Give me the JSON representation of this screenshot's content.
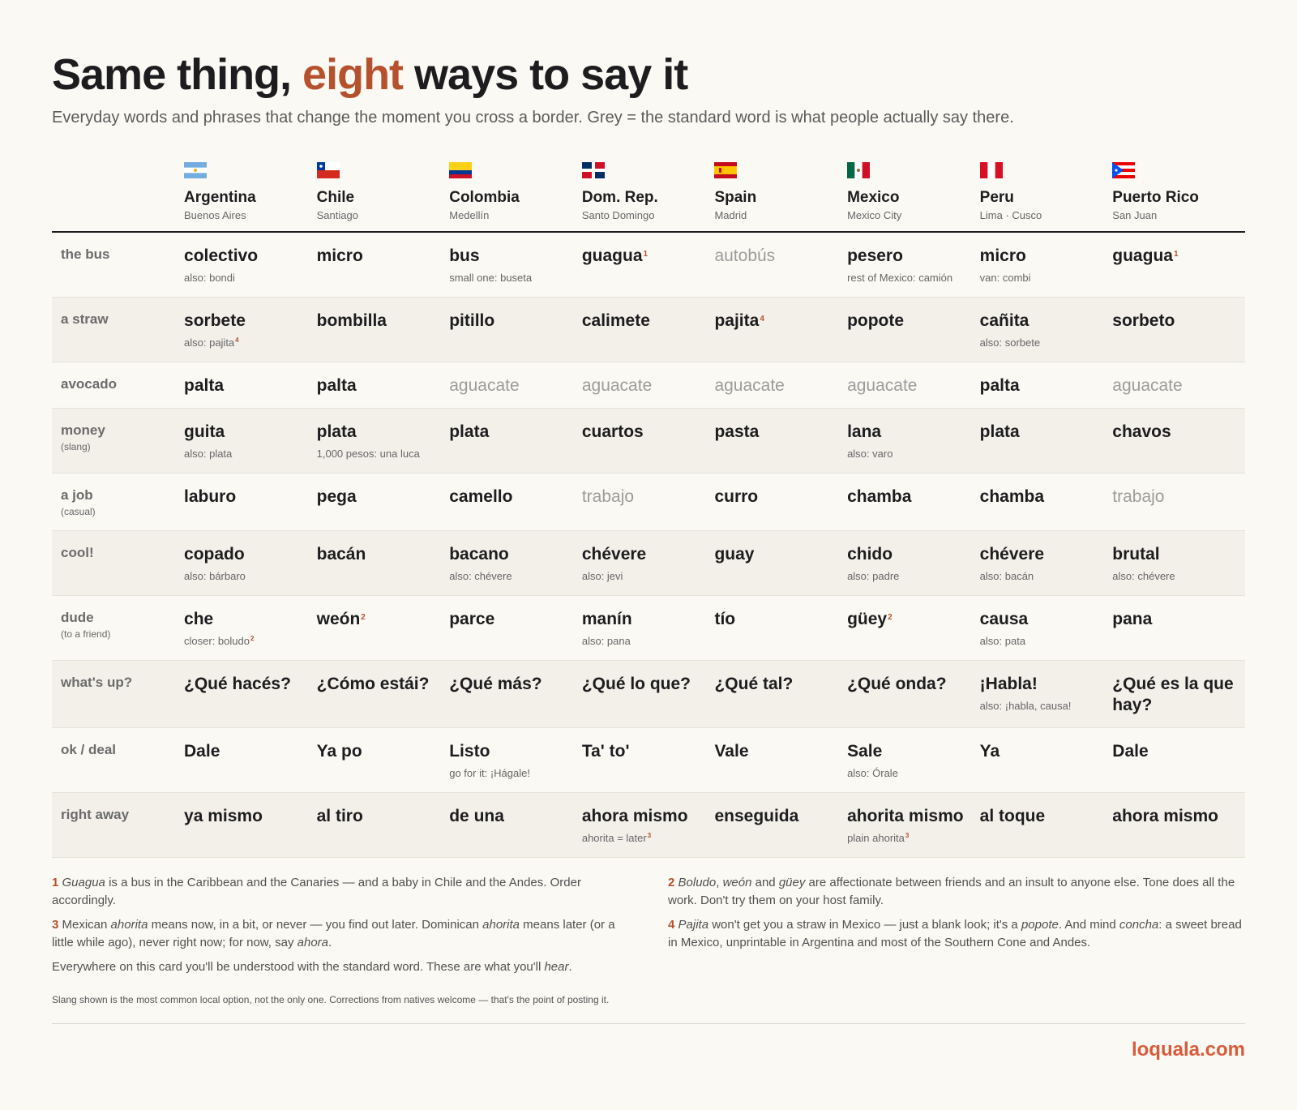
{
  "title": {
    "pre": "Same thing, ",
    "accent": "eight",
    "post": " ways to say it"
  },
  "subtitle": "Everyday words and phrases that change the moment you cross a border. Grey = the standard word is what people actually say there.",
  "countries": [
    {
      "name": "Argentina",
      "city": "Buenos Aires",
      "flag": "argentina-flag"
    },
    {
      "name": "Chile",
      "city": "Santiago",
      "flag": "chile-flag"
    },
    {
      "name": "Colombia",
      "city": "Medellín",
      "flag": "colombia-flag"
    },
    {
      "name": "Dom. Rep.",
      "city": "Santo Domingo",
      "flag": "dominican-republic-flag"
    },
    {
      "name": "Spain",
      "city": "Madrid",
      "flag": "spain-flag"
    },
    {
      "name": "Mexico",
      "city": "Mexico City",
      "flag": "mexico-flag"
    },
    {
      "name": "Peru",
      "city": "Lima · Cusco",
      "flag": "peru-flag"
    },
    {
      "name": "Puerto Rico",
      "city": "San Juan",
      "flag": "puerto-rico-flag"
    }
  ],
  "rows": [
    {
      "label": "the bus",
      "note": "",
      "cells": [
        {
          "word": "colectivo",
          "note": "also: bondi"
        },
        {
          "word": "micro"
        },
        {
          "word": "bus",
          "note": "small one: buseta"
        },
        {
          "word": "guagua",
          "fn": "1"
        },
        {
          "word": "autobús",
          "std": true
        },
        {
          "word": "pesero",
          "note": "rest of Mexico: camión"
        },
        {
          "word": "micro",
          "note": "van: combi"
        },
        {
          "word": "guagua",
          "fn": "1"
        }
      ]
    },
    {
      "label": "a straw",
      "note": "",
      "cells": [
        {
          "word": "sorbete",
          "note": "also: pajita",
          "note_fn": "4"
        },
        {
          "word": "bombilla"
        },
        {
          "word": "pitillo"
        },
        {
          "word": "calimete"
        },
        {
          "word": "pajita",
          "fn": "4"
        },
        {
          "word": "popote"
        },
        {
          "word": "cañita",
          "note": "also: sorbete"
        },
        {
          "word": "sorbeto"
        }
      ]
    },
    {
      "label": "avocado",
      "note": "",
      "cells": [
        {
          "word": "palta"
        },
        {
          "word": "palta"
        },
        {
          "word": "aguacate",
          "std": true
        },
        {
          "word": "aguacate",
          "std": true
        },
        {
          "word": "aguacate",
          "std": true
        },
        {
          "word": "aguacate",
          "std": true
        },
        {
          "word": "palta"
        },
        {
          "word": "aguacate",
          "std": true
        }
      ]
    },
    {
      "label": "money",
      "note": "(slang)",
      "cells": [
        {
          "word": "guita",
          "note": "also: plata"
        },
        {
          "word": "plata",
          "note": "1,000 pesos: una luca"
        },
        {
          "word": "plata"
        },
        {
          "word": "cuartos"
        },
        {
          "word": "pasta"
        },
        {
          "word": "lana",
          "note": "also: varo"
        },
        {
          "word": "plata"
        },
        {
          "word": "chavos"
        }
      ]
    },
    {
      "label": "a job",
      "note": "(casual)",
      "cells": [
        {
          "word": "laburo"
        },
        {
          "word": "pega"
        },
        {
          "word": "camello"
        },
        {
          "word": "trabajo",
          "std": true
        },
        {
          "word": "curro"
        },
        {
          "word": "chamba"
        },
        {
          "word": "chamba"
        },
        {
          "word": "trabajo",
          "std": true
        }
      ]
    },
    {
      "label": "cool!",
      "note": "",
      "cells": [
        {
          "word": "copado",
          "note": "also: bárbaro"
        },
        {
          "word": "bacán"
        },
        {
          "word": "bacano",
          "note": "also: chévere"
        },
        {
          "word": "chévere",
          "note": "also: jevi"
        },
        {
          "word": "guay"
        },
        {
          "word": "chido",
          "note": "also: padre"
        },
        {
          "word": "chévere",
          "note": "also: bacán"
        },
        {
          "word": "brutal",
          "note": "also: chévere"
        }
      ]
    },
    {
      "label": "dude",
      "note": "(to a friend)",
      "cells": [
        {
          "word": "che",
          "note": "closer: boludo",
          "note_fn": "2"
        },
        {
          "word": "weón",
          "fn": "2"
        },
        {
          "word": "parce"
        },
        {
          "word": "manín",
          "note": "also: pana"
        },
        {
          "word": "tío"
        },
        {
          "word": "güey",
          "fn": "2"
        },
        {
          "word": "causa",
          "note": "also: pata"
        },
        {
          "word": "pana"
        }
      ]
    },
    {
      "label": "what's up?",
      "note": "",
      "cells": [
        {
          "word": "¿Qué hacés?"
        },
        {
          "word": "¿Cómo estái?"
        },
        {
          "word": "¿Qué más?"
        },
        {
          "word": "¿Qué lo que?"
        },
        {
          "word": "¿Qué tal?"
        },
        {
          "word": "¿Qué onda?"
        },
        {
          "word": "¡Habla!",
          "note": "also: ¡habla, causa!"
        },
        {
          "word": "¿Qué es la que hay?"
        }
      ]
    },
    {
      "label": "ok / deal",
      "note": "",
      "cells": [
        {
          "word": "Dale"
        },
        {
          "word": "Ya po"
        },
        {
          "word": "Listo",
          "note": "go for it: ¡Hágale!"
        },
        {
          "word": "Ta' to'"
        },
        {
          "word": "Vale"
        },
        {
          "word": "Sale",
          "note": "also: Órale"
        },
        {
          "word": "Ya"
        },
        {
          "word": "Dale"
        }
      ]
    },
    {
      "label": "right away",
      "note": "",
      "cells": [
        {
          "word": "ya mismo"
        },
        {
          "word": "al tiro"
        },
        {
          "word": "de una"
        },
        {
          "word": "ahora mismo",
          "note": "ahorita = later",
          "note_fn": "3"
        },
        {
          "word": "enseguida"
        },
        {
          "word": "ahorita mismo",
          "note": "plain ahorita",
          "note_fn": "3"
        },
        {
          "word": "al toque"
        },
        {
          "word": "ahora mismo"
        }
      ]
    }
  ],
  "footnotes": {
    "f1": {
      "num": "1",
      "em1": "Guagua",
      "text": " is a bus in the Caribbean and the Canaries — and a baby in Chile and the Andes. Order accordingly."
    },
    "f2": {
      "num": "2",
      "em1": "Boludo",
      "sep1": ", ",
      "em2": "weón",
      "sep2": " and ",
      "em3": "güey",
      "text": " are affectionate between friends and an insult to anyone else. Tone does all the work. Don't try them on your host family."
    },
    "f3": {
      "num": "3",
      "pre": " Mexican ",
      "em1": "ahorita",
      "mid1": " means now, in a bit, or never — you find out later. Dominican ",
      "em2": "ahorita",
      "mid2": " means later (or a little while ago), never right now; for now, say ",
      "em3": "ahora",
      "post": "."
    },
    "f4": {
      "num": "4",
      "em1": "Pajita",
      "mid1": " won't get you a straw in Mexico — just a blank look; it's a ",
      "em2": "popote",
      "mid2": ". And mind ",
      "em3": "concha",
      "post": ": a sweet bread in Mexico, unprintable in Argentina and most of the Southern Cone and Andes."
    },
    "understood": {
      "pre": "Everywhere on this card you'll be understood with the standard word. These are what you'll ",
      "em": "hear",
      "post": "."
    }
  },
  "fineprint": "Slang shown is the most common local option, not the only one. Corrections from natives welcome — that's the point of posting it.",
  "brand": "loquala.com"
}
